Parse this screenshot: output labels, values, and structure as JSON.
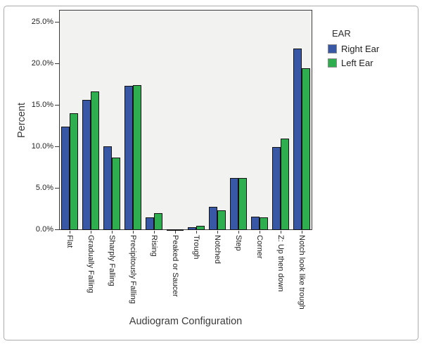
{
  "window": {
    "background": "#ffffff",
    "frame_border_color": "#ababab",
    "plot_background": "#f2f2f0",
    "plot_border_color": "#3c3c3c",
    "bar_outline_color": "#141414"
  },
  "chart_data": {
    "type": "bar",
    "title": "",
    "xlabel": "Audiogram Configuration",
    "ylabel": "Percent",
    "categories": [
      "Flat",
      "Gradually Falling",
      "Sharply Falling",
      "Precipitously Falling",
      "Rising",
      "Peaked or Saucer",
      "Trough",
      "Notched",
      "Step",
      "Corner",
      "Z: Up then down",
      "Notch look like trough"
    ],
    "series": [
      {
        "name": "Right Ear",
        "color": "#3857a5",
        "values": [
          12.5,
          15.7,
          10.1,
          17.4,
          1.5,
          0.1,
          0.3,
          2.8,
          6.3,
          1.6,
          10.0,
          21.9
        ]
      },
      {
        "name": "Left Ear",
        "color": "#2eae4e",
        "values": [
          14.1,
          16.7,
          8.7,
          17.5,
          2.0,
          0.1,
          0.5,
          2.4,
          6.3,
          1.5,
          11.0,
          19.5
        ]
      }
    ],
    "ylim": [
      0,
      26.5
    ],
    "yticks": [
      0,
      5,
      10,
      15,
      20,
      25
    ],
    "ytick_labels": [
      "0.0%",
      "5.0%",
      "10.0%",
      "15.0%",
      "20.0%",
      "25.0%"
    ],
    "legend": {
      "title": "EAR",
      "position": "right-top-outside"
    },
    "grid": false
  }
}
